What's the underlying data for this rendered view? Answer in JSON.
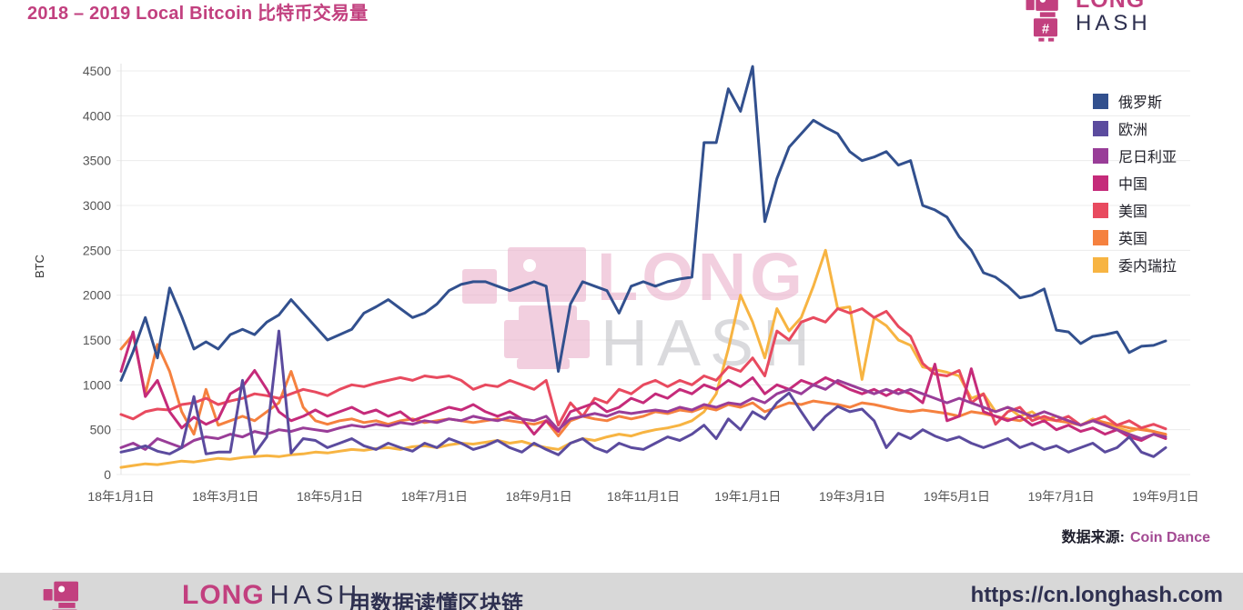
{
  "header": {
    "title": "2018 – 2019 Local Bitcoin 比特币交易量",
    "logo": {
      "line1": "LONG",
      "line2": "HASH"
    }
  },
  "watermark": {
    "line1": "LONG",
    "line2": "HASH"
  },
  "source": {
    "label": "数据来源:",
    "value": "Coin Dance"
  },
  "footer": {
    "brand_long": "LONG",
    "brand_hash": "HASH",
    "tagline": "用数据读懂区块链",
    "url": "https://cn.longhash.com"
  },
  "colors": {
    "title": "#c2407f",
    "grid": "#ececec",
    "axis_text": "#555555",
    "watermark_pink": "#e9a9c6",
    "watermark_gray": "#bcbcc2",
    "footer_bg": "#d8d8d8",
    "navy": "#2e3050",
    "magenta": "#c2407f"
  },
  "chart_data": {
    "type": "line",
    "title": "2018 – 2019 Local Bitcoin 比特币交易量",
    "xlabel": "",
    "ylabel": "BTC",
    "ylim": [
      0,
      4500
    ],
    "yticks": [
      0,
      500,
      1000,
      1500,
      2000,
      2500,
      3000,
      3500,
      4000,
      4500
    ],
    "xtick_labels": [
      "18年1月1日",
      "18年3月1日",
      "18年5月1日",
      "18年7月1日",
      "18年9月1日",
      "18年11月1日",
      "19年1月1日",
      "19年3月1日",
      "19年5月1日",
      "19年7月1日",
      "19年9月1日"
    ],
    "x_unit": "weekly samples, 2018-01-01 to 2019-09-01",
    "n_points": 87,
    "grid": "horizontal",
    "legend_position": "right",
    "source": "Coin Dance",
    "series": [
      {
        "name": "俄罗斯",
        "color": "#32508e",
        "values": [
          1050,
          1370,
          1750,
          1300,
          2080,
          1760,
          1400,
          1480,
          1400,
          1560,
          1620,
          1560,
          1700,
          1780,
          1950,
          1800,
          1650,
          1500,
          1560,
          1620,
          1800,
          1870,
          1950,
          1850,
          1750,
          1800,
          1900,
          2050,
          2120,
          2150,
          2150,
          2100,
          2050,
          2100,
          2150,
          2100,
          1150,
          1900,
          2150,
          2100,
          2050,
          1800,
          2100,
          2150,
          2100,
          2150,
          2180,
          2200,
          3700,
          3700,
          4300,
          4050,
          4550,
          2820,
          3300,
          3650,
          3800,
          3950,
          3870,
          3800,
          3600,
          3500,
          3540,
          3600,
          3450,
          3500,
          3000,
          2950,
          2870,
          2650,
          2500,
          2250,
          2200,
          2100,
          1970,
          2000,
          2070,
          1610,
          1590,
          1460,
          1540,
          1560,
          1590,
          1360,
          1430,
          1440,
          1490
        ]
      },
      {
        "name": "欧洲",
        "color": "#5b4b9e",
        "values": [
          250,
          280,
          320,
          260,
          230,
          300,
          870,
          230,
          250,
          250,
          1050,
          230,
          420,
          1600,
          240,
          400,
          380,
          300,
          350,
          400,
          320,
          280,
          350,
          300,
          260,
          350,
          300,
          400,
          350,
          280,
          320,
          380,
          300,
          250,
          350,
          280,
          220,
          350,
          400,
          300,
          250,
          350,
          300,
          280,
          350,
          420,
          380,
          450,
          550,
          400,
          620,
          500,
          700,
          620,
          800,
          910,
          700,
          500,
          650,
          760,
          700,
          730,
          600,
          300,
          460,
          400,
          500,
          430,
          380,
          420,
          350,
          300,
          350,
          400,
          300,
          350,
          280,
          320,
          250,
          300,
          350,
          250,
          300,
          420,
          250,
          200,
          300
        ]
      },
      {
        "name": "尼日利亚",
        "color": "#993d98",
        "values": [
          300,
          350,
          280,
          400,
          350,
          300,
          380,
          420,
          400,
          450,
          420,
          480,
          450,
          500,
          480,
          520,
          500,
          480,
          520,
          550,
          530,
          560,
          540,
          580,
          560,
          600,
          580,
          620,
          600,
          650,
          620,
          600,
          640,
          620,
          600,
          650,
          500,
          620,
          650,
          680,
          650,
          700,
          680,
          700,
          720,
          700,
          750,
          720,
          780,
          750,
          800,
          780,
          850,
          800,
          900,
          950,
          900,
          1000,
          950,
          1050,
          1000,
          950,
          900,
          950,
          900,
          950,
          900,
          850,
          800,
          850,
          800,
          750,
          700,
          750,
          700,
          650,
          700,
          650,
          600,
          550,
          600,
          550,
          500,
          450,
          400,
          450,
          420
        ]
      },
      {
        "name": "中国",
        "color": "#c52b7a",
        "values": [
          1150,
          1590,
          870,
          1050,
          700,
          520,
          640,
          560,
          620,
          900,
          980,
          1160,
          950,
          700,
          600,
          650,
          720,
          650,
          700,
          750,
          680,
          720,
          650,
          700,
          600,
          650,
          700,
          750,
          720,
          780,
          700,
          650,
          700,
          620,
          450,
          600,
          480,
          700,
          750,
          800,
          700,
          750,
          850,
          800,
          900,
          850,
          950,
          900,
          1000,
          950,
          1050,
          980,
          1080,
          900,
          1000,
          950,
          1050,
          1000,
          1080,
          1020,
          950,
          900,
          950,
          880,
          950,
          900,
          800,
          1230,
          600,
          650,
          1180,
          700,
          650,
          600,
          650,
          550,
          600,
          500,
          550,
          480,
          520,
          450,
          500,
          420,
          380,
          450,
          400
        ]
      },
      {
        "name": "美国",
        "color": "#e84a5f",
        "values": [
          670,
          620,
          700,
          730,
          720,
          780,
          800,
          850,
          780,
          820,
          850,
          900,
          880,
          850,
          900,
          950,
          920,
          880,
          950,
          1000,
          980,
          1020,
          1050,
          1080,
          1050,
          1100,
          1080,
          1100,
          1050,
          950,
          1000,
          980,
          1050,
          1000,
          950,
          1050,
          550,
          800,
          650,
          850,
          800,
          950,
          900,
          1000,
          1050,
          980,
          1050,
          1000,
          1100,
          1050,
          1200,
          1150,
          1300,
          1100,
          1600,
          1500,
          1700,
          1750,
          1700,
          1850,
          1800,
          1850,
          1750,
          1820,
          1650,
          1540,
          1240,
          1120,
          1100,
          1160,
          800,
          900,
          560,
          700,
          750,
          600,
          650,
          600,
          650,
          550,
          600,
          650,
          550,
          600,
          520,
          560,
          510
        ]
      },
      {
        "name": "英国",
        "color": "#f5813f",
        "values": [
          1400,
          1560,
          900,
          1450,
          1150,
          700,
          450,
          950,
          550,
          600,
          650,
          600,
          700,
          800,
          1150,
          750,
          600,
          560,
          600,
          620,
          580,
          600,
          560,
          600,
          620,
          580,
          600,
          620,
          600,
          580,
          600,
          620,
          600,
          580,
          560,
          600,
          430,
          600,
          650,
          620,
          600,
          650,
          620,
          650,
          700,
          680,
          720,
          700,
          750,
          720,
          780,
          750,
          800,
          700,
          750,
          800,
          780,
          820,
          800,
          780,
          750,
          800,
          780,
          750,
          720,
          700,
          720,
          700,
          680,
          650,
          700,
          680,
          650,
          620,
          600,
          650,
          620,
          600,
          580,
          550,
          600,
          580,
          550,
          520,
          500,
          480,
          450
        ]
      },
      {
        "name": "委内瑞拉",
        "color": "#f7b442",
        "values": [
          80,
          100,
          120,
          110,
          130,
          150,
          140,
          160,
          180,
          170,
          190,
          200,
          210,
          200,
          220,
          230,
          250,
          240,
          260,
          280,
          270,
          290,
          300,
          280,
          310,
          320,
          300,
          330,
          350,
          340,
          360,
          380,
          350,
          370,
          330,
          300,
          280,
          350,
          400,
          380,
          420,
          450,
          430,
          470,
          500,
          520,
          550,
          600,
          700,
          900,
          1400,
          2000,
          1700,
          1300,
          1850,
          1600,
          1750,
          2100,
          2500,
          1850,
          1870,
          1060,
          1750,
          1660,
          1500,
          1440,
          1200,
          1170,
          1140,
          1100,
          850,
          900,
          700,
          750,
          650,
          700,
          600,
          650,
          600,
          550,
          620,
          580,
          520,
          480,
          520,
          480,
          440
        ]
      }
    ]
  }
}
